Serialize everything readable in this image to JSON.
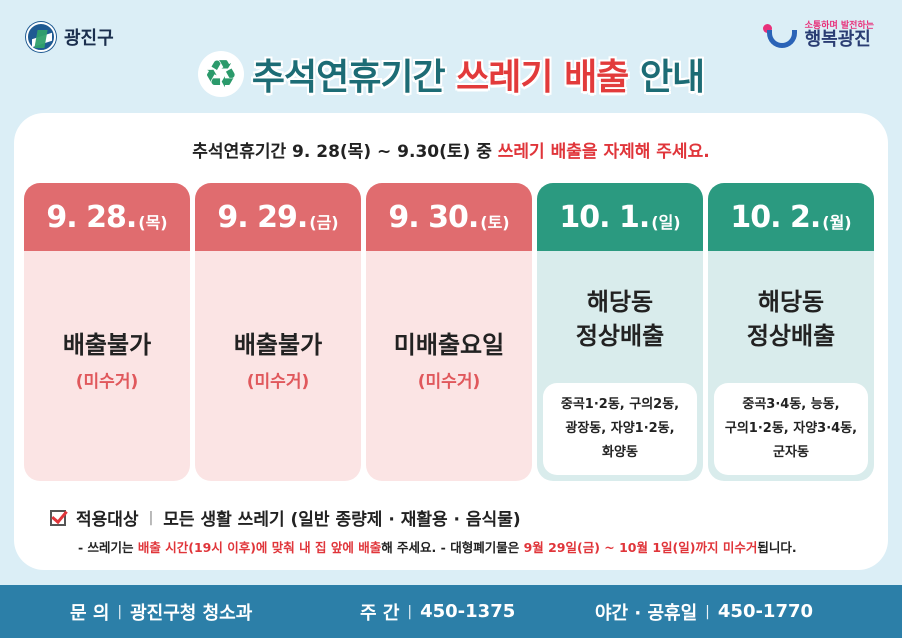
{
  "logo": {
    "text": "광진구",
    "icon": "district-seal-icon"
  },
  "slogan": {
    "small": "소통하며 발전하는",
    "big": "행복광진",
    "icon": "slogan-mark-icon"
  },
  "title": {
    "part1": "추석연휴기간",
    "part2": "쓰레기 배출",
    "part3": "안내",
    "icon": "recycle-icon"
  },
  "subtitle": {
    "prefix": "추석연휴기간 9. 28(목) ~ 9.30(토) 중",
    "highlight": "쓰레기 배출을 자제해 주세요."
  },
  "days": [
    {
      "date": "9. 28.",
      "weekday": "(목)",
      "main": "배출불가",
      "sub": "(미수거)"
    },
    {
      "date": "9. 29.",
      "weekday": "(금)",
      "main": "배출불가",
      "sub": "(미수거)"
    },
    {
      "date": "9. 30.",
      "weekday": "(토)",
      "main": "미배출요일",
      "sub": "(미수거)"
    },
    {
      "date": "10. 1.",
      "weekday": "(일)",
      "main_line1": "해당동",
      "main_line2": "정상배출",
      "areas": [
        "중곡1·2동, 구의2동,",
        "광장동, 자양1·2동,",
        "화양동"
      ]
    },
    {
      "date": "10. 2.",
      "weekday": "(월)",
      "main_line1": "해당동",
      "main_line2": "정상배출",
      "areas": [
        "중곡3·4동, 능동,",
        "구의1·2동, 자양3·4동,",
        "군자동"
      ]
    }
  ],
  "apply": {
    "label": "적용대상",
    "separator": "|",
    "value": "모든 생활 쓰레기 (일반 종량제 · 재활용 · 음식물)"
  },
  "notice": {
    "p1": "- 쓰레기는 ",
    "h1": "배출 시간(19시 이후)에 맞춰 내 집 앞에 배출",
    "p2": "해 주세요. - 대형폐기물은 ",
    "h2": "9월 29일(금) ~ 10월 1일(일)까지 미수거",
    "p3": "됩니다."
  },
  "footer": {
    "contact_label": "문 의",
    "contact_value": "광진구청 청소과",
    "day_label": "주 간",
    "day_phone": "450-1375",
    "night_label": "야간 · 공휴일",
    "night_phone": "450-1770",
    "bar": "|"
  },
  "colors": {
    "red_head": "#e06c6f",
    "red_body": "#fbe4e4",
    "green_head": "#2b9a80",
    "green_body": "#d9ecec",
    "footer": "#2c7fa8",
    "highlight": "#e0353a"
  }
}
